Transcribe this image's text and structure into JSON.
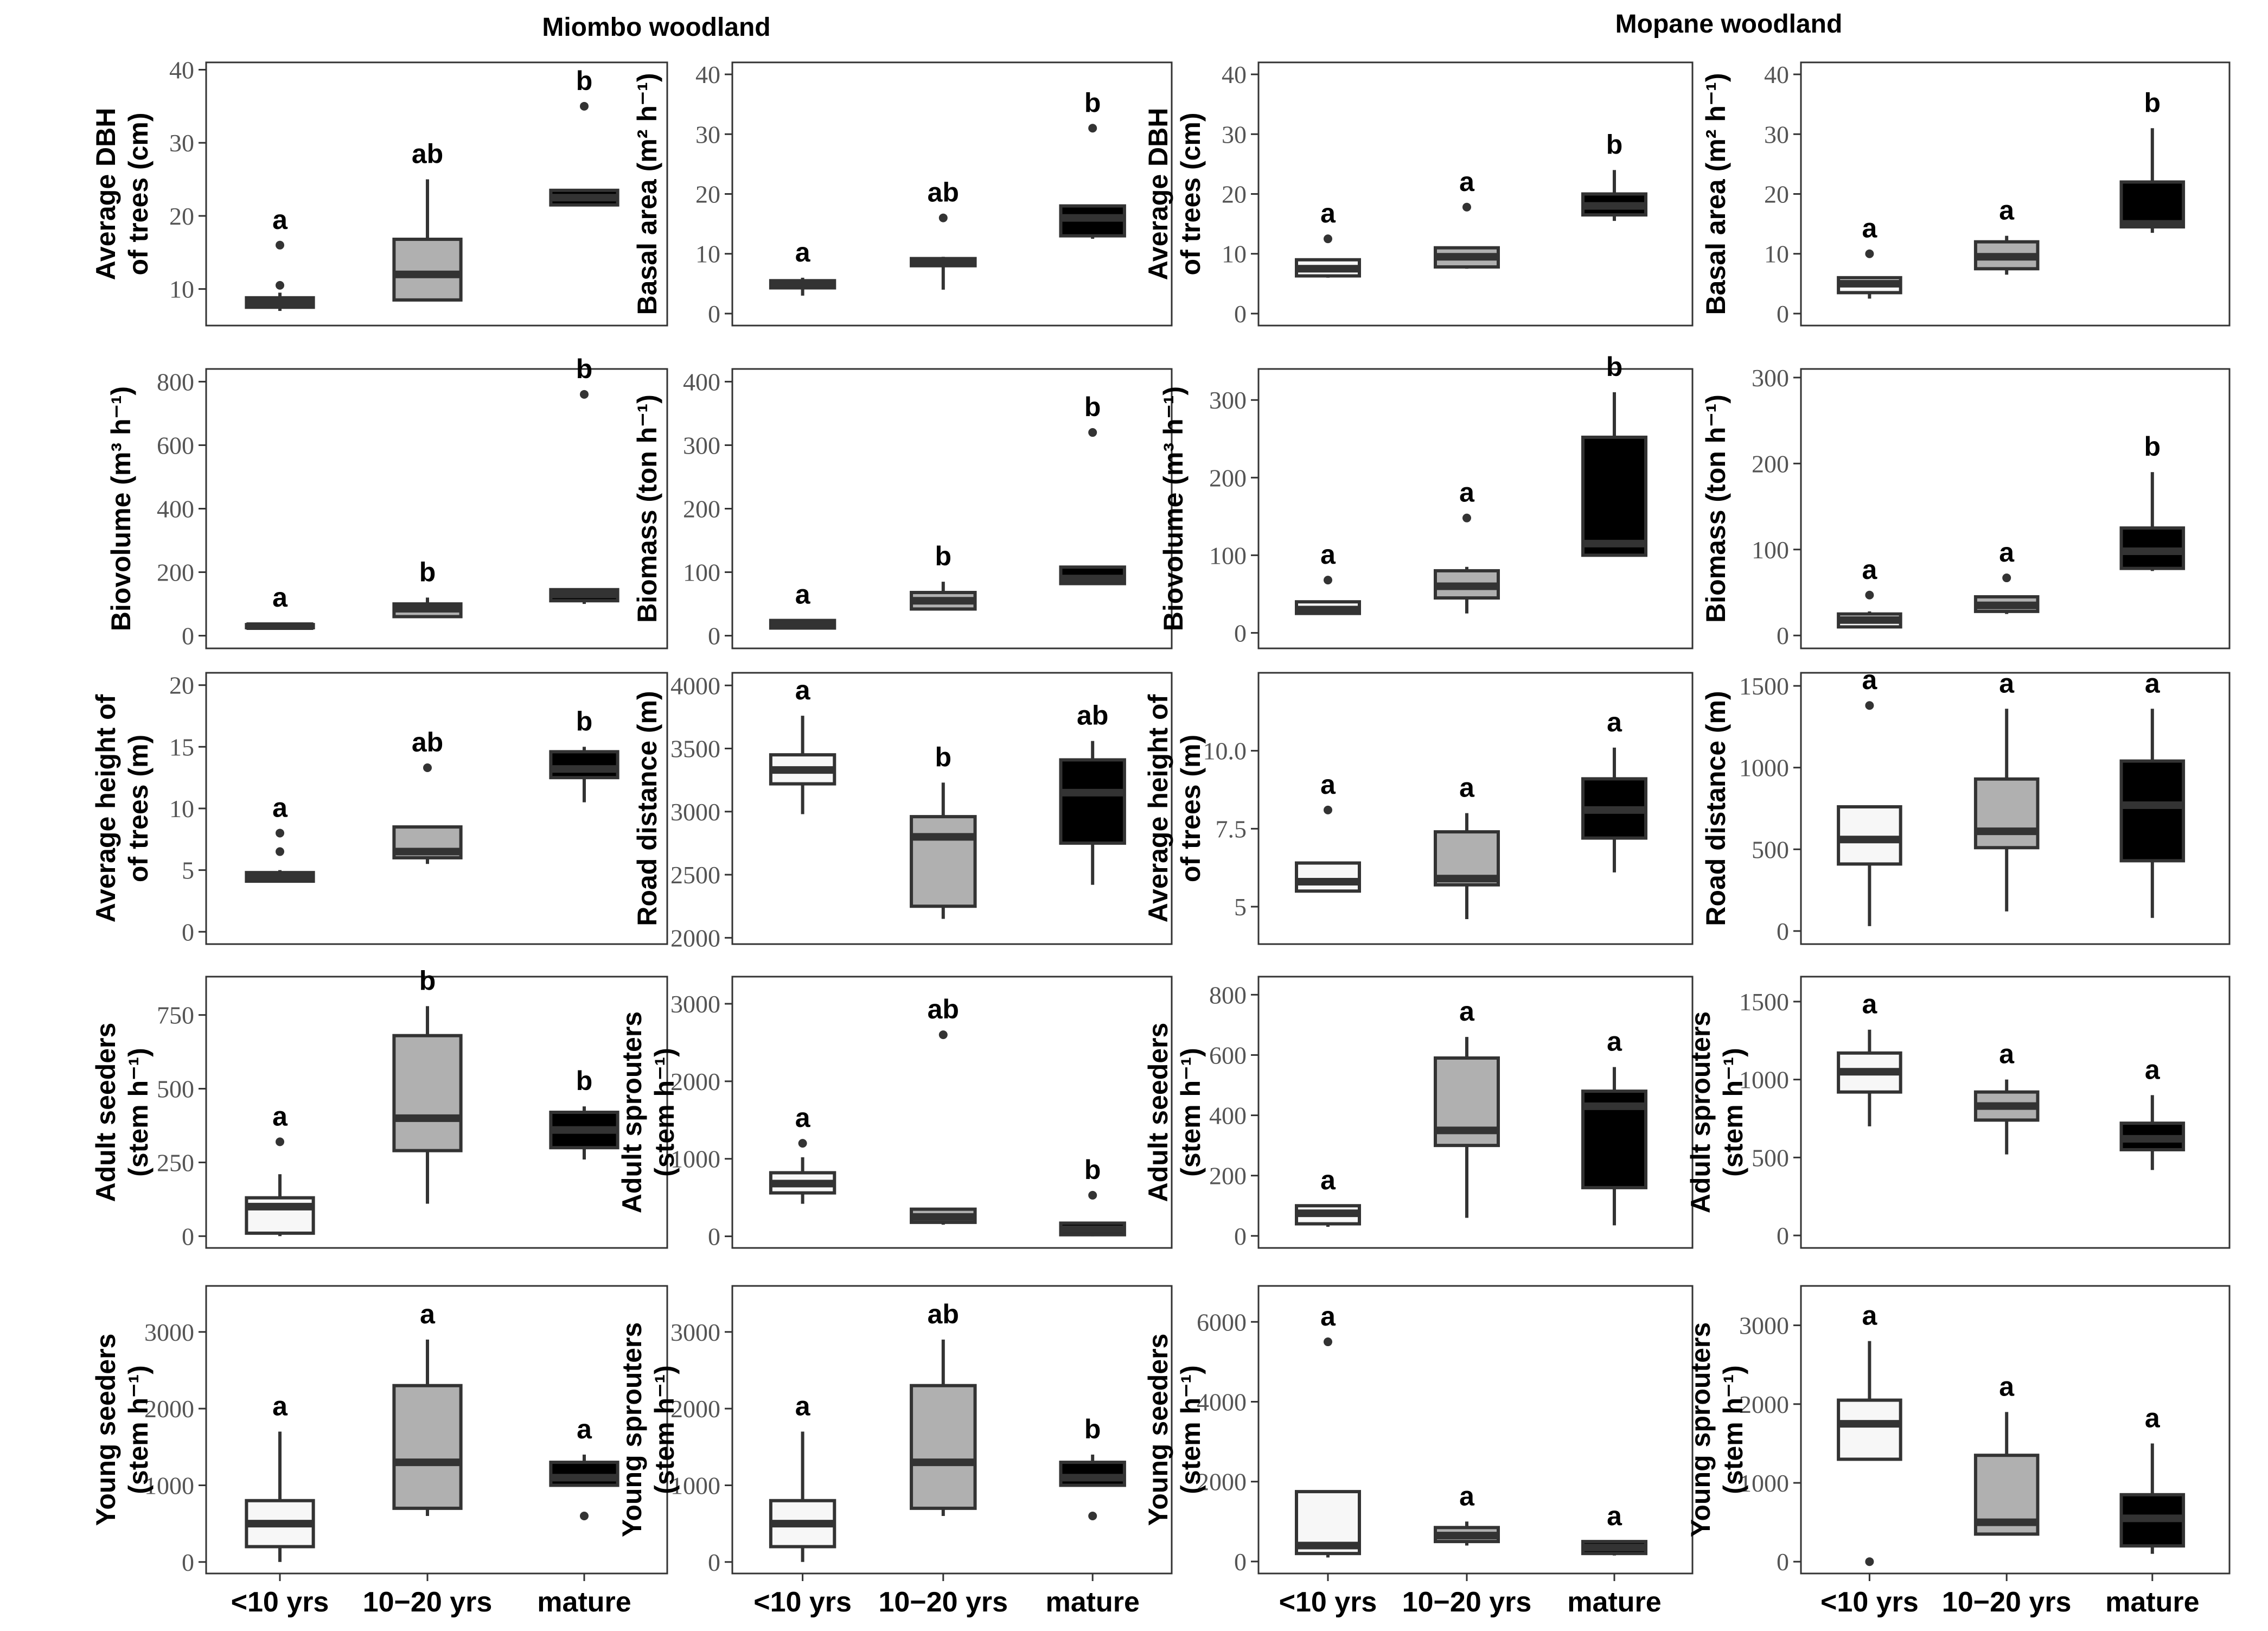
{
  "woodland_titles": [
    "Miombo woodland",
    "Mopane woodland"
  ],
  "colors": {
    "young": "#f7f7f7",
    "mid": "#b0b0b0",
    "mature": "#000000",
    "stroke": "#333333"
  },
  "chart_data": [
    {
      "type": "box",
      "woodland": "Miombo woodland",
      "ylabel": [
        "Average DBH",
        "of trees (cm)"
      ],
      "ylim": [
        5,
        41
      ],
      "yticks": [
        10,
        20,
        30,
        40
      ],
      "showX": false,
      "categories": [
        "<10 yrs",
        "10−20 yrs",
        "mature"
      ],
      "groups": [
        {
          "min": 7,
          "q1": 7.5,
          "median": 8.2,
          "q3": 8.8,
          "max": 9.5,
          "outliers": [
            10.5,
            16
          ],
          "letter": "a"
        },
        {
          "min": 8.5,
          "q1": 8.5,
          "median": 12,
          "q3": 16.8,
          "max": 25,
          "outliers": [],
          "letter": "ab"
        },
        {
          "min": 21.5,
          "q1": 21.5,
          "median": 22.5,
          "q3": 23.5,
          "max": 23.5,
          "outliers": [
            35
          ],
          "letter": "b"
        }
      ]
    },
    {
      "type": "box",
      "woodland": "Miombo woodland",
      "ylabel": [
        "Basal area (m² h⁻¹)"
      ],
      "ylim": [
        -2,
        42
      ],
      "yticks": [
        0,
        10,
        20,
        30,
        40
      ],
      "showX": false,
      "categories": [
        "<10 yrs",
        "10−20 yrs",
        "mature"
      ],
      "groups": [
        {
          "min": 3,
          "q1": 4.3,
          "median": 5,
          "q3": 5.5,
          "max": 6,
          "outliers": [],
          "letter": "a"
        },
        {
          "min": 4,
          "q1": 8,
          "median": 8.7,
          "q3": 9.2,
          "max": 9.5,
          "outliers": [
            16
          ],
          "letter": "ab"
        },
        {
          "min": 12.5,
          "q1": 13,
          "median": 16,
          "q3": 18,
          "max": 18,
          "outliers": [
            31
          ],
          "letter": "b"
        }
      ]
    },
    {
      "type": "box",
      "woodland": "Mopane woodland",
      "ylabel": [
        "Average DBH",
        "of trees (cm)"
      ],
      "ylim": [
        -2,
        42
      ],
      "yticks": [
        0,
        10,
        20,
        30,
        40
      ],
      "showX": false,
      "categories": [
        "<10 yrs",
        "10−20 yrs",
        "mature"
      ],
      "groups": [
        {
          "min": 6,
          "q1": 6.3,
          "median": 7.5,
          "q3": 9,
          "max": 9,
          "outliers": [
            12.5
          ],
          "letter": "a"
        },
        {
          "min": 7.5,
          "q1": 7.8,
          "median": 9.5,
          "q3": 11,
          "max": 11,
          "outliers": [
            17.8
          ],
          "letter": "a"
        },
        {
          "min": 15.5,
          "q1": 16.5,
          "median": 18,
          "q3": 20,
          "max": 24,
          "outliers": [],
          "letter": "b"
        }
      ]
    },
    {
      "type": "box",
      "woodland": "Mopane woodland",
      "ylabel": [
        "Basal area (m² h⁻¹)"
      ],
      "ylim": [
        -2,
        42
      ],
      "yticks": [
        0,
        10,
        20,
        30,
        40
      ],
      "showX": false,
      "categories": [
        "<10 yrs",
        "10−20 yrs",
        "mature"
      ],
      "groups": [
        {
          "min": 2.5,
          "q1": 3.5,
          "median": 5,
          "q3": 6,
          "max": 6,
          "outliers": [
            10
          ],
          "letter": "a"
        },
        {
          "min": 6.5,
          "q1": 7.5,
          "median": 9.5,
          "q3": 12,
          "max": 13,
          "outliers": [],
          "letter": "a"
        },
        {
          "min": 13.5,
          "q1": 14.5,
          "median": 15,
          "q3": 22,
          "max": 31,
          "outliers": [],
          "letter": "b"
        }
      ]
    },
    {
      "type": "box",
      "woodland": "Miombo woodland",
      "ylabel": [
        "Biovolume (m³ h⁻¹)"
      ],
      "ylim": [
        -40,
        840
      ],
      "yticks": [
        0,
        200,
        400,
        600,
        800
      ],
      "showX": false,
      "categories": [
        "<10 yrs",
        "10−20 yrs",
        "mature"
      ],
      "groups": [
        {
          "min": 20,
          "q1": 25,
          "median": 30,
          "q3": 35,
          "max": 40,
          "outliers": [],
          "letter": "a"
        },
        {
          "min": 60,
          "q1": 60,
          "median": 85,
          "q3": 100,
          "max": 120,
          "outliers": [],
          "letter": "b"
        },
        {
          "min": 100,
          "q1": 110,
          "median": 130,
          "q3": 145,
          "max": 145,
          "outliers": [
            760
          ],
          "letter": "b"
        }
      ]
    },
    {
      "type": "box",
      "woodland": "Miombo woodland",
      "ylabel": [
        "Biomass (ton h⁻¹)"
      ],
      "ylim": [
        -20,
        420
      ],
      "yticks": [
        0,
        100,
        200,
        300,
        400
      ],
      "showX": false,
      "categories": [
        "<10 yrs",
        "10−20 yrs",
        "mature"
      ],
      "groups": [
        {
          "min": 10,
          "q1": 12,
          "median": 18,
          "q3": 24,
          "max": 25,
          "outliers": [],
          "letter": "a"
        },
        {
          "min": 40,
          "q1": 42,
          "median": 55,
          "q3": 68,
          "max": 85,
          "outliers": [],
          "letter": "b"
        },
        {
          "min": 80,
          "q1": 82,
          "median": 90,
          "q3": 108,
          "max": 108,
          "outliers": [
            320
          ],
          "letter": "b"
        }
      ]
    },
    {
      "type": "box",
      "woodland": "Mopane woodland",
      "ylabel": [
        "Biovolume (m³ h⁻¹)"
      ],
      "ylim": [
        -20,
        340
      ],
      "yticks": [
        0,
        100,
        200,
        300
      ],
      "showX": false,
      "categories": [
        "<10 yrs",
        "10−20 yrs",
        "mature"
      ],
      "groups": [
        {
          "min": 25,
          "q1": 25,
          "median": 30,
          "q3": 40,
          "max": 40,
          "outliers": [
            68
          ],
          "letter": "a"
        },
        {
          "min": 25,
          "q1": 45,
          "median": 60,
          "q3": 80,
          "max": 85,
          "outliers": [
            148
          ],
          "letter": "a"
        },
        {
          "min": 100,
          "q1": 100,
          "median": 115,
          "q3": 252,
          "max": 310,
          "outliers": [],
          "letter": "b"
        }
      ]
    },
    {
      "type": "box",
      "woodland": "Mopane woodland",
      "ylabel": [
        "Biomass (ton h⁻¹)"
      ],
      "ylim": [
        -15,
        310
      ],
      "yticks": [
        0,
        100,
        200,
        300
      ],
      "showX": false,
      "categories": [
        "<10 yrs",
        "10−20 yrs",
        "mature"
      ],
      "groups": [
        {
          "min": 10,
          "q1": 10,
          "median": 18,
          "q3": 25,
          "max": 28,
          "outliers": [
            47
          ],
          "letter": "a"
        },
        {
          "min": 25,
          "q1": 28,
          "median": 35,
          "q3": 45,
          "max": 45,
          "outliers": [
            67
          ],
          "letter": "a"
        },
        {
          "min": 75,
          "q1": 78,
          "median": 98,
          "q3": 125,
          "max": 190,
          "outliers": [],
          "letter": "b"
        }
      ]
    },
    {
      "type": "box",
      "woodland": "Miombo woodland",
      "ylabel": [
        "Average height of",
        "of trees (m)"
      ],
      "ylim": [
        -1,
        21
      ],
      "yticks": [
        0,
        5,
        10,
        15,
        20
      ],
      "showX": false,
      "categories": [
        "<10 yrs",
        "10−20 yrs",
        "mature"
      ],
      "groups": [
        {
          "min": 4,
          "q1": 4.1,
          "median": 4.5,
          "q3": 4.8,
          "max": 5,
          "outliers": [
            6.5,
            8
          ],
          "letter": "a"
        },
        {
          "min": 5.5,
          "q1": 6,
          "median": 6.5,
          "q3": 8.5,
          "max": 8.5,
          "outliers": [
            13.3
          ],
          "letter": "ab"
        },
        {
          "min": 10.5,
          "q1": 12.5,
          "median": 13.2,
          "q3": 14.6,
          "max": 15,
          "outliers": [],
          "letter": "b"
        }
      ]
    },
    {
      "type": "box",
      "woodland": "Miombo woodland",
      "ylabel": [
        "Road distance (m)"
      ],
      "ylim": [
        1950,
        4100
      ],
      "yticks": [
        2000,
        2500,
        3000,
        3500,
        4000
      ],
      "showX": false,
      "categories": [
        "<10 yrs",
        "10−20 yrs",
        "mature"
      ],
      "groups": [
        {
          "min": 2980,
          "q1": 3220,
          "median": 3330,
          "q3": 3450,
          "max": 3760,
          "outliers": [],
          "letter": "a"
        },
        {
          "min": 2150,
          "q1": 2250,
          "median": 2800,
          "q3": 2960,
          "max": 3230,
          "outliers": [],
          "letter": "b"
        },
        {
          "min": 2420,
          "q1": 2750,
          "median": 3150,
          "q3": 3410,
          "max": 3560,
          "outliers": [],
          "letter": "ab"
        }
      ]
    },
    {
      "type": "box",
      "woodland": "Mopane woodland",
      "ylabel": [
        "Average height of",
        "of trees (m)"
      ],
      "ylim": [
        3.8,
        12.5
      ],
      "yticks": [
        5,
        7.5,
        10
      ],
      "tickLabels": [
        "5",
        "7.5",
        "10.0"
      ],
      "showX": false,
      "categories": [
        "<10 yrs",
        "10−20 yrs",
        "mature"
      ],
      "groups": [
        {
          "min": 5.5,
          "q1": 5.5,
          "median": 5.8,
          "q3": 6.4,
          "max": 6.4,
          "outliers": [
            8.1
          ],
          "letter": "a"
        },
        {
          "min": 4.6,
          "q1": 5.7,
          "median": 5.9,
          "q3": 7.4,
          "max": 8,
          "outliers": [],
          "letter": "a"
        },
        {
          "min": 6.1,
          "q1": 7.2,
          "median": 8.1,
          "q3": 9.1,
          "max": 10.1,
          "outliers": [],
          "letter": "a"
        }
      ]
    },
    {
      "type": "box",
      "woodland": "Mopane woodland",
      "ylabel": [
        "Road distance (m)"
      ],
      "ylim": [
        -80,
        1580
      ],
      "yticks": [
        0,
        500,
        1000,
        1500
      ],
      "showX": false,
      "categories": [
        "<10 yrs",
        "10−20 yrs",
        "mature"
      ],
      "groups": [
        {
          "min": 30,
          "q1": 410,
          "median": 560,
          "q3": 760,
          "max": 760,
          "outliers": [
            1380
          ],
          "letter": "a"
        },
        {
          "min": 120,
          "q1": 510,
          "median": 610,
          "q3": 930,
          "max": 1360,
          "outliers": [],
          "letter": "a"
        },
        {
          "min": 80,
          "q1": 430,
          "median": 770,
          "q3": 1040,
          "max": 1360,
          "outliers": [],
          "letter": "a"
        }
      ]
    },
    {
      "type": "box",
      "woodland": "Miombo woodland",
      "ylabel": [
        "Adult seeders",
        "(stem h⁻¹)"
      ],
      "ylim": [
        -40,
        880
      ],
      "yticks": [
        0,
        250,
        500,
        750
      ],
      "showX": false,
      "categories": [
        "<10 yrs",
        "10−20 yrs",
        "mature"
      ],
      "groups": [
        {
          "min": 0,
          "q1": 10,
          "median": 100,
          "q3": 130,
          "max": 210,
          "outliers": [
            320
          ],
          "letter": "a"
        },
        {
          "min": 110,
          "q1": 290,
          "median": 400,
          "q3": 680,
          "max": 780,
          "outliers": [],
          "letter": "b"
        },
        {
          "min": 260,
          "q1": 300,
          "median": 360,
          "q3": 420,
          "max": 440,
          "outliers": [],
          "letter": "b"
        }
      ]
    },
    {
      "type": "box",
      "woodland": "Miombo woodland",
      "ylabel": [
        "Adult sprouters",
        "(stem h⁻¹)"
      ],
      "ylim": [
        -150,
        3350
      ],
      "yticks": [
        0,
        1000,
        2000,
        3000
      ],
      "showX": false,
      "categories": [
        "<10 yrs",
        "10−20 yrs",
        "mature"
      ],
      "groups": [
        {
          "min": 420,
          "q1": 560,
          "median": 680,
          "q3": 820,
          "max": 1020,
          "outliers": [
            1200
          ],
          "letter": "a"
        },
        {
          "min": 150,
          "q1": 180,
          "median": 250,
          "q3": 350,
          "max": 350,
          "outliers": [
            2600
          ],
          "letter": "ab"
        },
        {
          "min": 0,
          "q1": 20,
          "median": 90,
          "q3": 170,
          "max": 170,
          "outliers": [
            530
          ],
          "letter": "b"
        }
      ]
    },
    {
      "type": "box",
      "woodland": "Mopane woodland",
      "ylabel": [
        "Adult seeders",
        "(stem h⁻¹)"
      ],
      "ylim": [
        -40,
        860
      ],
      "yticks": [
        0,
        200,
        400,
        600,
        800
      ],
      "showX": false,
      "categories": [
        "<10 yrs",
        "10−20 yrs",
        "mature"
      ],
      "groups": [
        {
          "min": 30,
          "q1": 40,
          "median": 75,
          "q3": 100,
          "max": 100,
          "outliers": [],
          "letter": "a"
        },
        {
          "min": 60,
          "q1": 300,
          "median": 350,
          "q3": 590,
          "max": 660,
          "outliers": [],
          "letter": "a"
        },
        {
          "min": 35,
          "q1": 160,
          "median": 430,
          "q3": 480,
          "max": 560,
          "outliers": [],
          "letter": "a"
        }
      ]
    },
    {
      "type": "box",
      "woodland": "Mopane woodland",
      "ylabel": [
        "Adult sprouters",
        "(stem h⁻¹)"
      ],
      "ylim": [
        -80,
        1660
      ],
      "yticks": [
        0,
        500,
        1000,
        1500
      ],
      "showX": false,
      "categories": [
        "<10 yrs",
        "10−20 yrs",
        "mature"
      ],
      "groups": [
        {
          "min": 700,
          "q1": 920,
          "median": 1050,
          "q3": 1170,
          "max": 1320,
          "outliers": [],
          "letter": "a"
        },
        {
          "min": 520,
          "q1": 740,
          "median": 830,
          "q3": 920,
          "max": 1000,
          "outliers": [],
          "letter": "a"
        },
        {
          "min": 420,
          "q1": 550,
          "median": 620,
          "q3": 720,
          "max": 900,
          "outliers": [],
          "letter": "a"
        }
      ]
    },
    {
      "type": "box",
      "woodland": "Miombo woodland",
      "ylabel": [
        "Young seeders",
        "(stem h⁻¹)"
      ],
      "ylim": [
        -150,
        3600
      ],
      "yticks": [
        0,
        1000,
        2000,
        3000
      ],
      "showX": true,
      "categories": [
        "<10 yrs",
        "10−20 yrs",
        "mature"
      ],
      "groups": [
        {
          "min": 0,
          "q1": 200,
          "median": 500,
          "q3": 800,
          "max": 1700,
          "outliers": [],
          "letter": "a"
        },
        {
          "min": 600,
          "q1": 700,
          "median": 1300,
          "q3": 2300,
          "max": 2900,
          "outliers": [],
          "letter": "a"
        },
        {
          "min": 1000,
          "q1": 1000,
          "median": 1100,
          "q3": 1300,
          "max": 1400,
          "outliers": [
            600
          ],
          "letter": "a"
        }
      ]
    },
    {
      "type": "box",
      "woodland": "Miombo woodland",
      "ylabel": [
        "Young sprouters",
        "(stem h⁻¹)"
      ],
      "ylim": [
        -150,
        3600
      ],
      "yticks": [
        0,
        1000,
        2000,
        3000
      ],
      "showX": true,
      "categories": [
        "<10 yrs",
        "10−20 yrs",
        "mature"
      ],
      "groups": [
        {
          "min": 0,
          "q1": 200,
          "median": 500,
          "q3": 800,
          "max": 1700,
          "outliers": [],
          "letter": "a"
        },
        {
          "min": 600,
          "q1": 700,
          "median": 1300,
          "q3": 2300,
          "max": 2900,
          "outliers": [],
          "letter": "ab"
        },
        {
          "min": 1000,
          "q1": 1000,
          "median": 1100,
          "q3": 1300,
          "max": 1400,
          "outliers": [
            600
          ],
          "letter": "b"
        }
      ]
    },
    {
      "type": "box",
      "woodland": "Mopane woodland",
      "ylabel": [
        "Young seeders",
        "(stem h⁻¹)"
      ],
      "ylim": [
        -300,
        6900
      ],
      "yticks": [
        0,
        2000,
        4000,
        6000
      ],
      "showX": true,
      "categories": [
        "<10 yrs",
        "10−20 yrs",
        "mature"
      ],
      "groups": [
        {
          "min": 100,
          "q1": 200,
          "median": 400,
          "q3": 1750,
          "max": 1750,
          "outliers": [
            5500
          ],
          "letter": "a"
        },
        {
          "min": 400,
          "q1": 500,
          "median": 650,
          "q3": 850,
          "max": 1000,
          "outliers": [],
          "letter": "a"
        },
        {
          "min": 150,
          "q1": 200,
          "median": 350,
          "q3": 500,
          "max": 500,
          "outliers": [],
          "letter": "a"
        }
      ]
    },
    {
      "type": "box",
      "woodland": "Mopane woodland",
      "ylabel": [
        "Young sprouters",
        "(stem h⁻¹)"
      ],
      "ylim": [
        -150,
        3500
      ],
      "yticks": [
        0,
        1000,
        2000,
        3000
      ],
      "showX": true,
      "categories": [
        "<10 yrs",
        "10−20 yrs",
        "mature"
      ],
      "groups": [
        {
          "min": 1300,
          "q1": 1300,
          "median": 1750,
          "q3": 2050,
          "max": 2800,
          "outliers": [
            0
          ],
          "letter": "a"
        },
        {
          "min": 350,
          "q1": 350,
          "median": 500,
          "q3": 1350,
          "max": 1900,
          "outliers": [],
          "letter": "a"
        },
        {
          "min": 100,
          "q1": 200,
          "median": 550,
          "q3": 850,
          "max": 1500,
          "outliers": [],
          "letter": "a"
        }
      ]
    }
  ]
}
